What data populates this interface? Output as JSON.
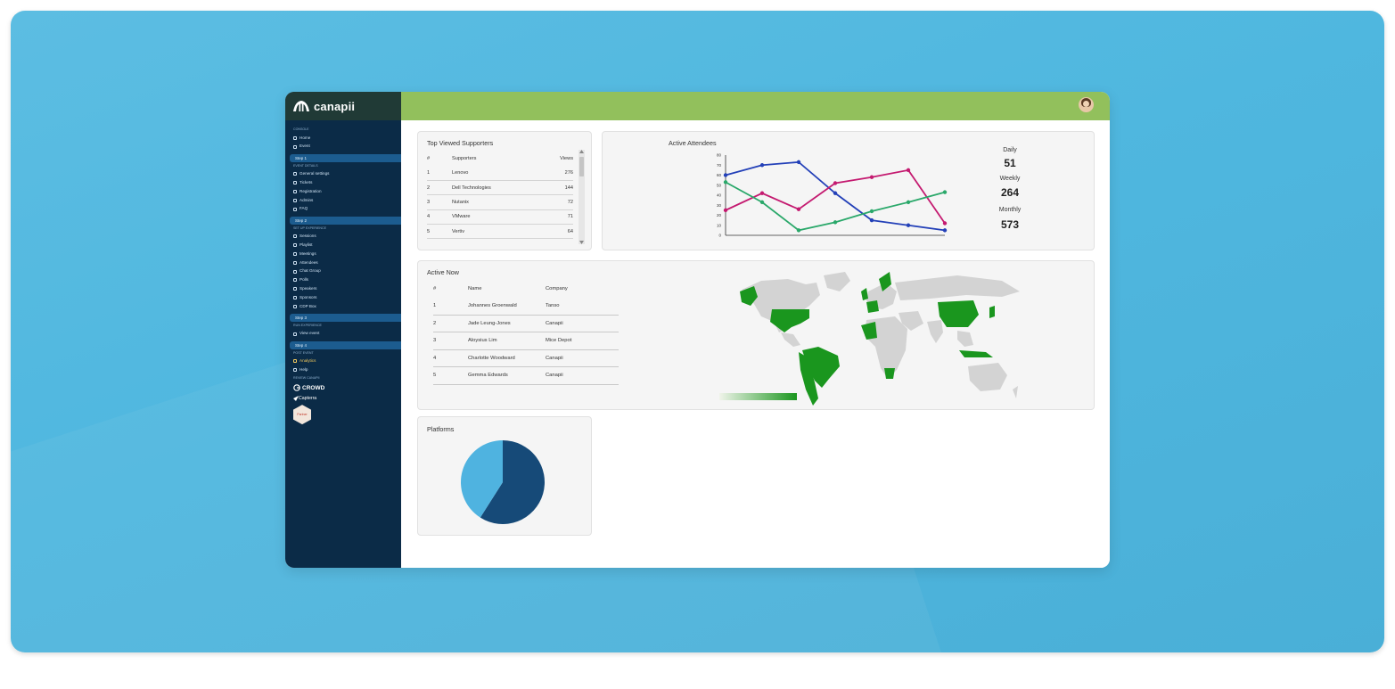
{
  "brand": {
    "name": "canapii"
  },
  "sidebar": {
    "sections": [
      {
        "header": "Console",
        "items": [
          {
            "label": "Home",
            "icon": "home-icon"
          },
          {
            "label": "Event",
            "icon": "calendar-icon"
          }
        ]
      },
      {
        "step": "Step 1",
        "header": "Event Details",
        "items": [
          {
            "label": "General settings",
            "icon": "gear-icon"
          },
          {
            "label": "Tickets",
            "icon": "ticket-icon"
          },
          {
            "label": "Registration",
            "icon": "form-icon"
          },
          {
            "label": "Admins",
            "icon": "key-icon"
          },
          {
            "label": "FAQ",
            "icon": "faq-icon"
          }
        ]
      },
      {
        "step": "Step 2",
        "header": "Set Up Experience",
        "items": [
          {
            "label": "Sessions",
            "icon": "sessions-icon"
          },
          {
            "label": "Playlist",
            "icon": "playlist-icon"
          },
          {
            "label": "Meetings",
            "icon": "meetings-icon"
          },
          {
            "label": "Attendees",
            "icon": "attendees-icon"
          },
          {
            "label": "Chat Group",
            "icon": "chat-icon"
          },
          {
            "label": "Polls",
            "icon": "polls-icon"
          },
          {
            "label": "Speakers",
            "icon": "speakers-icon"
          },
          {
            "label": "Sponsors",
            "icon": "sponsors-icon"
          },
          {
            "label": "CDP Box",
            "icon": "box-icon"
          }
        ]
      },
      {
        "step": "Step 3",
        "header": "Run Experience",
        "items": [
          {
            "label": "View event",
            "icon": "eye-icon"
          }
        ]
      },
      {
        "step": "Step 4",
        "header": "Post Event",
        "items": [
          {
            "label": "Analytics",
            "icon": "analytics-icon",
            "active": true
          },
          {
            "label": "Help",
            "icon": "help-icon"
          }
        ]
      }
    ],
    "review_header": "Review Canapii",
    "badges": {
      "crowd": "CROWD",
      "capterra": "Capterra",
      "hex": "Partner"
    }
  },
  "top_supporters": {
    "title": "Top Viewed Supporters",
    "columns": [
      "#",
      "Supporters",
      "Views"
    ],
    "rows": [
      [
        "1",
        "Lenovo",
        "276"
      ],
      [
        "2",
        "Dell Technologies",
        "144"
      ],
      [
        "3",
        "Nutanix",
        "72"
      ],
      [
        "4",
        "VMware",
        "71"
      ],
      [
        "5",
        "Vertiv",
        "64"
      ]
    ]
  },
  "active_attendees": {
    "title": "Active Attendees",
    "stats": [
      {
        "label": "Daily",
        "value": "51"
      },
      {
        "label": "Weekly",
        "value": "264"
      },
      {
        "label": "Monthly",
        "value": "573"
      }
    ]
  },
  "active_now": {
    "title": "Active Now",
    "columns": [
      "#",
      "Name",
      "Company"
    ],
    "rows": [
      [
        "1",
        "Johannes Groenwald",
        "Tanso"
      ],
      [
        "2",
        "Jade Leung-Jones",
        "Canapii"
      ],
      [
        "3",
        "Aloysius Lim",
        "Mice Depot"
      ],
      [
        "4",
        "Charlotte Woodward",
        "Canapii"
      ],
      [
        "5",
        "Gemma Edwards",
        "Canapii"
      ]
    ]
  },
  "platforms": {
    "title": "Platforms"
  },
  "colors": {
    "accent": "#92c05c",
    "sidebar": "#0b2b47",
    "map_active": "#1a961e",
    "map_inactive": "#d3d3d3"
  },
  "chart_data": [
    {
      "type": "line",
      "y_ticks": [
        "0",
        "10",
        "20",
        "30",
        "40",
        "50",
        "60",
        "70",
        "80"
      ],
      "ylim": [
        0,
        80
      ],
      "x": [
        1,
        2,
        3,
        4,
        5,
        6,
        7
      ],
      "series": [
        {
          "color": "#2340b8",
          "values": [
            60,
            70,
            73,
            42,
            15,
            10,
            5
          ]
        },
        {
          "color": "#c41a70",
          "values": [
            25,
            42,
            26,
            52,
            58,
            65,
            12
          ]
        },
        {
          "color": "#2aa86a",
          "values": [
            53,
            33,
            5,
            13,
            24,
            33,
            43
          ]
        }
      ]
    },
    {
      "type": "pie",
      "slices": [
        {
          "value": 59,
          "color": "#164a78"
        },
        {
          "value": 41,
          "color": "#4fb3e0"
        }
      ]
    }
  ]
}
